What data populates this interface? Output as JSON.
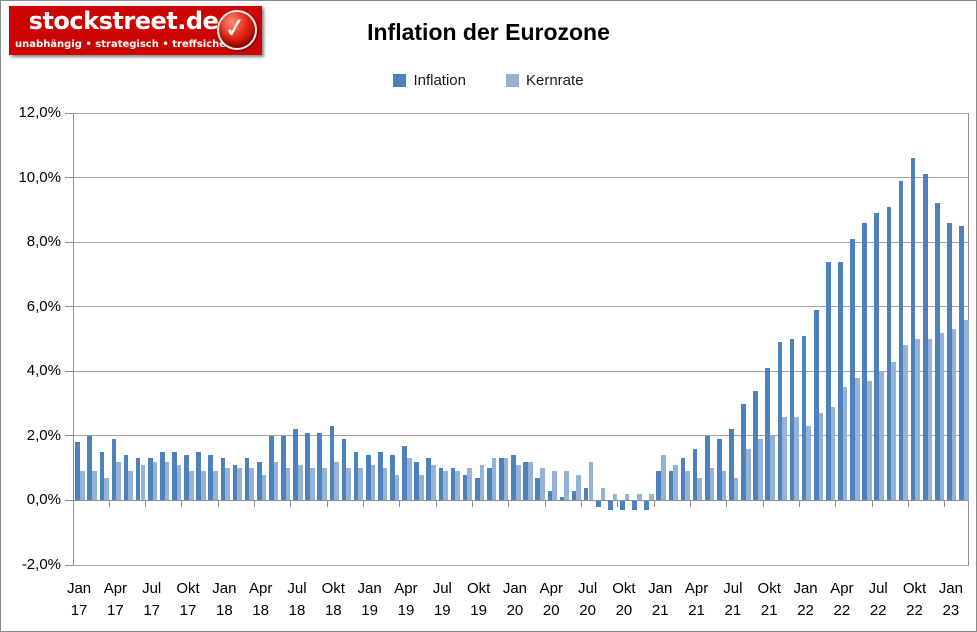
{
  "logo": {
    "brand": "stockstreet.de",
    "tagline": "unabhängig • strategisch • treffsicher",
    "badge_icon": "checkmark-icon",
    "bg_color": "#cb0404"
  },
  "header": {
    "title": "Inflation der Eurozone"
  },
  "chart_data": {
    "type": "bar",
    "title": "Inflation der Eurozone",
    "xlabel": "",
    "ylabel": "",
    "x_start": "Jan 2017",
    "x_end": "Feb 2023",
    "frequency": "monthly",
    "ylim": [
      -2,
      12
    ],
    "grid": true,
    "legend_position": "top",
    "colors": {
      "gridline": "#a3a3a3",
      "axis": "#8f8f8f",
      "text": "#000000"
    },
    "y_ticks": [
      {
        "value": 12,
        "label": "12,0%"
      },
      {
        "value": 10,
        "label": "10,0%"
      },
      {
        "value": 8,
        "label": "8,0%"
      },
      {
        "value": 6,
        "label": "6,0%"
      },
      {
        "value": 4,
        "label": "4,0%"
      },
      {
        "value": 2,
        "label": "2,0%"
      },
      {
        "value": 0,
        "label": "0,0%"
      },
      {
        "value": -2,
        "label": "-2,0%"
      }
    ],
    "x_tick_labels": [
      {
        "month": "Jan",
        "year": "17"
      },
      {
        "month": "Apr",
        "year": "17"
      },
      {
        "month": "Jul",
        "year": "17"
      },
      {
        "month": "Okt",
        "year": "17"
      },
      {
        "month": "Jan",
        "year": "18"
      },
      {
        "month": "Apr",
        "year": "18"
      },
      {
        "month": "Jul",
        "year": "18"
      },
      {
        "month": "Okt",
        "year": "18"
      },
      {
        "month": "Jan",
        "year": "19"
      },
      {
        "month": "Apr",
        "year": "19"
      },
      {
        "month": "Jul",
        "year": "19"
      },
      {
        "month": "Okt",
        "year": "19"
      },
      {
        "month": "Jan",
        "year": "20"
      },
      {
        "month": "Apr",
        "year": "20"
      },
      {
        "month": "Jul",
        "year": "20"
      },
      {
        "month": "Okt",
        "year": "20"
      },
      {
        "month": "Jan",
        "year": "21"
      },
      {
        "month": "Apr",
        "year": "21"
      },
      {
        "month": "Jul",
        "year": "21"
      },
      {
        "month": "Okt",
        "year": "21"
      },
      {
        "month": "Jan",
        "year": "22"
      },
      {
        "month": "Apr",
        "year": "22"
      },
      {
        "month": "Jul",
        "year": "22"
      },
      {
        "month": "Okt",
        "year": "22"
      },
      {
        "month": "Jan",
        "year": "23"
      }
    ],
    "series": [
      {
        "name": "Inflation",
        "color": "#4F81BD",
        "values": [
          1.8,
          2.0,
          1.5,
          1.9,
          1.4,
          1.3,
          1.3,
          1.5,
          1.5,
          1.4,
          1.5,
          1.4,
          1.3,
          1.1,
          1.3,
          1.2,
          2.0,
          2.0,
          2.2,
          2.1,
          2.1,
          2.3,
          1.9,
          1.5,
          1.4,
          1.5,
          1.4,
          1.7,
          1.2,
          1.3,
          1.0,
          1.0,
          0.8,
          0.7,
          1.0,
          1.3,
          1.4,
          1.2,
          0.7,
          0.3,
          0.1,
          0.3,
          0.4,
          -0.2,
          -0.3,
          -0.3,
          -0.3,
          -0.3,
          0.9,
          0.9,
          1.3,
          1.6,
          2.0,
          1.9,
          2.2,
          3.0,
          3.4,
          4.1,
          4.9,
          5.0,
          5.1,
          5.9,
          7.4,
          7.4,
          8.1,
          8.6,
          8.9,
          9.1,
          9.9,
          10.6,
          10.1,
          9.2,
          8.6,
          8.5
        ]
      },
      {
        "name": "Kernrate",
        "color": "#95B3D7",
        "values": [
          0.9,
          0.9,
          0.7,
          1.2,
          0.9,
          1.1,
          1.2,
          1.2,
          1.1,
          0.9,
          0.9,
          0.9,
          1.0,
          1.0,
          1.0,
          0.8,
          1.2,
          1.0,
          1.1,
          1.0,
          1.0,
          1.2,
          1.0,
          1.0,
          1.1,
          1.0,
          0.8,
          1.3,
          0.8,
          1.1,
          0.9,
          0.9,
          1.0,
          1.1,
          1.3,
          1.3,
          1.1,
          1.2,
          1.0,
          0.9,
          0.9,
          0.8,
          1.2,
          0.4,
          0.2,
          0.2,
          0.2,
          0.2,
          1.4,
          1.1,
          0.9,
          0.7,
          1.0,
          0.9,
          0.7,
          1.6,
          1.9,
          2.0,
          2.6,
          2.6,
          2.3,
          2.7,
          2.9,
          3.5,
          3.8,
          3.7,
          4.0,
          4.3,
          4.8,
          5.0,
          5.0,
          5.2,
          5.3,
          5.6
        ]
      }
    ]
  }
}
